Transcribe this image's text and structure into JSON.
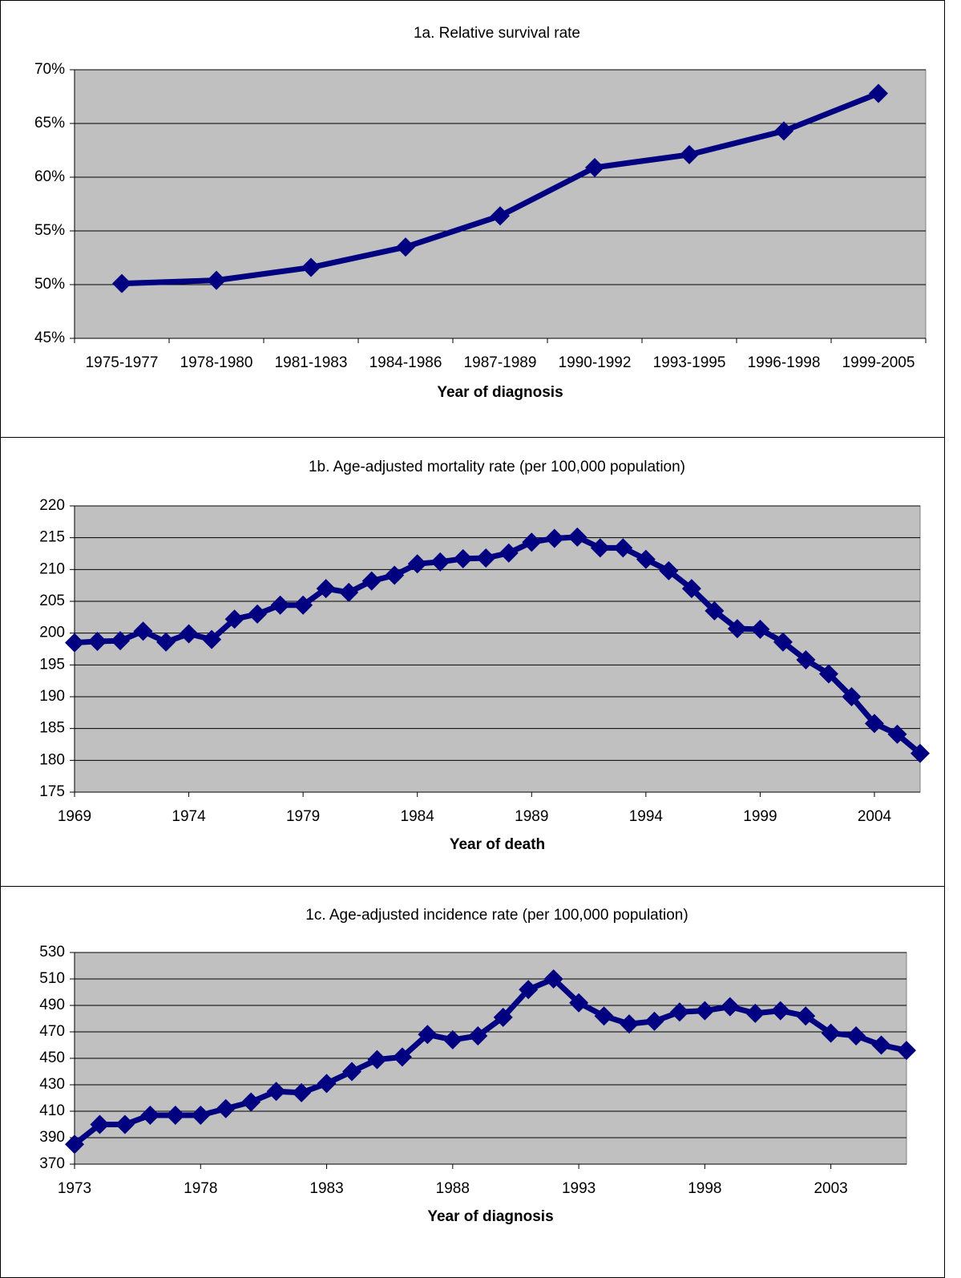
{
  "chart_data": [
    {
      "type": "line",
      "title": "1a. Relative survival rate",
      "x_label": "Year of diagnosis",
      "categories": [
        "1975-1977",
        "1978-1980",
        "1981-1983",
        "1984-1986",
        "1987-1989",
        "1990-1992",
        "1993-1995",
        "1996-1998",
        "1999-2005"
      ],
      "values": [
        50.1,
        50.4,
        51.6,
        53.5,
        56.4,
        60.9,
        62.1,
        64.3,
        67.8
      ],
      "color": "#000080",
      "ylim": [
        45,
        70
      ],
      "yticks": [
        {
          "value": 45,
          "label": "45%"
        },
        {
          "value": 50,
          "label": "50%"
        },
        {
          "value": 55,
          "label": "55%"
        },
        {
          "value": 60,
          "label": "60%"
        },
        {
          "value": 65,
          "label": "65%"
        },
        {
          "value": 70,
          "label": "70%"
        }
      ],
      "grid": true
    },
    {
      "type": "line",
      "title": "1b.  Age-adjusted mortality rate (per 100,000 population)",
      "x_label": "Year of death",
      "x": [
        1969,
        1970,
        1971,
        1972,
        1973,
        1974,
        1975,
        1976,
        1977,
        1978,
        1979,
        1980,
        1981,
        1982,
        1983,
        1984,
        1985,
        1986,
        1987,
        1988,
        1989,
        1990,
        1991,
        1992,
        1993,
        1994,
        1995,
        1996,
        1997,
        1998,
        1999,
        2000,
        2001,
        2002,
        2003,
        2004,
        2005,
        2006
      ],
      "values": [
        198.5,
        198.7,
        198.8,
        200.3,
        198.6,
        199.9,
        199.0,
        202.2,
        203.0,
        204.4,
        204.4,
        207.0,
        206.4,
        208.2,
        209.1,
        210.9,
        211.2,
        211.7,
        211.8,
        212.6,
        214.3,
        214.9,
        215.1,
        213.4,
        213.4,
        211.6,
        209.8,
        207.0,
        203.5,
        200.7,
        200.6,
        198.6,
        195.8,
        193.6,
        190.0,
        185.8,
        184.1,
        181.1
      ],
      "color": "#000080",
      "xlim": [
        1969,
        2006
      ],
      "xticks": [
        1969,
        1974,
        1979,
        1984,
        1989,
        1994,
        1999,
        2004
      ],
      "ylim": [
        175,
        220
      ],
      "yticks": [
        175,
        180,
        185,
        190,
        195,
        200,
        205,
        210,
        215,
        220
      ],
      "grid": true
    },
    {
      "type": "line",
      "title": "1c. Age-adjusted incidence rate (per 100,000 population)",
      "x_label": "Year of diagnosis",
      "x": [
        1973,
        1974,
        1975,
        1976,
        1977,
        1978,
        1979,
        1980,
        1981,
        1982,
        1983,
        1984,
        1985,
        1986,
        1987,
        1988,
        1989,
        1990,
        1991,
        1992,
        1993,
        1994,
        1995,
        1996,
        1997,
        1998,
        1999,
        2000,
        2001,
        2002,
        2003,
        2004,
        2005,
        2006
      ],
      "values": [
        385,
        400,
        400,
        407,
        407,
        407,
        412,
        417,
        425,
        424,
        431,
        440,
        449,
        451,
        468,
        464,
        467,
        481,
        502,
        510,
        492,
        482,
        476,
        478,
        485,
        486,
        489,
        484,
        486,
        482,
        469,
        467,
        460,
        456
      ],
      "color": "#000080",
      "xlim": [
        1973,
        2006
      ],
      "xticks": [
        1973,
        1978,
        1983,
        1988,
        1993,
        1998,
        2003
      ],
      "ylim": [
        370,
        530
      ],
      "yticks": [
        370,
        390,
        410,
        430,
        450,
        470,
        490,
        510,
        530
      ],
      "grid": true
    }
  ]
}
